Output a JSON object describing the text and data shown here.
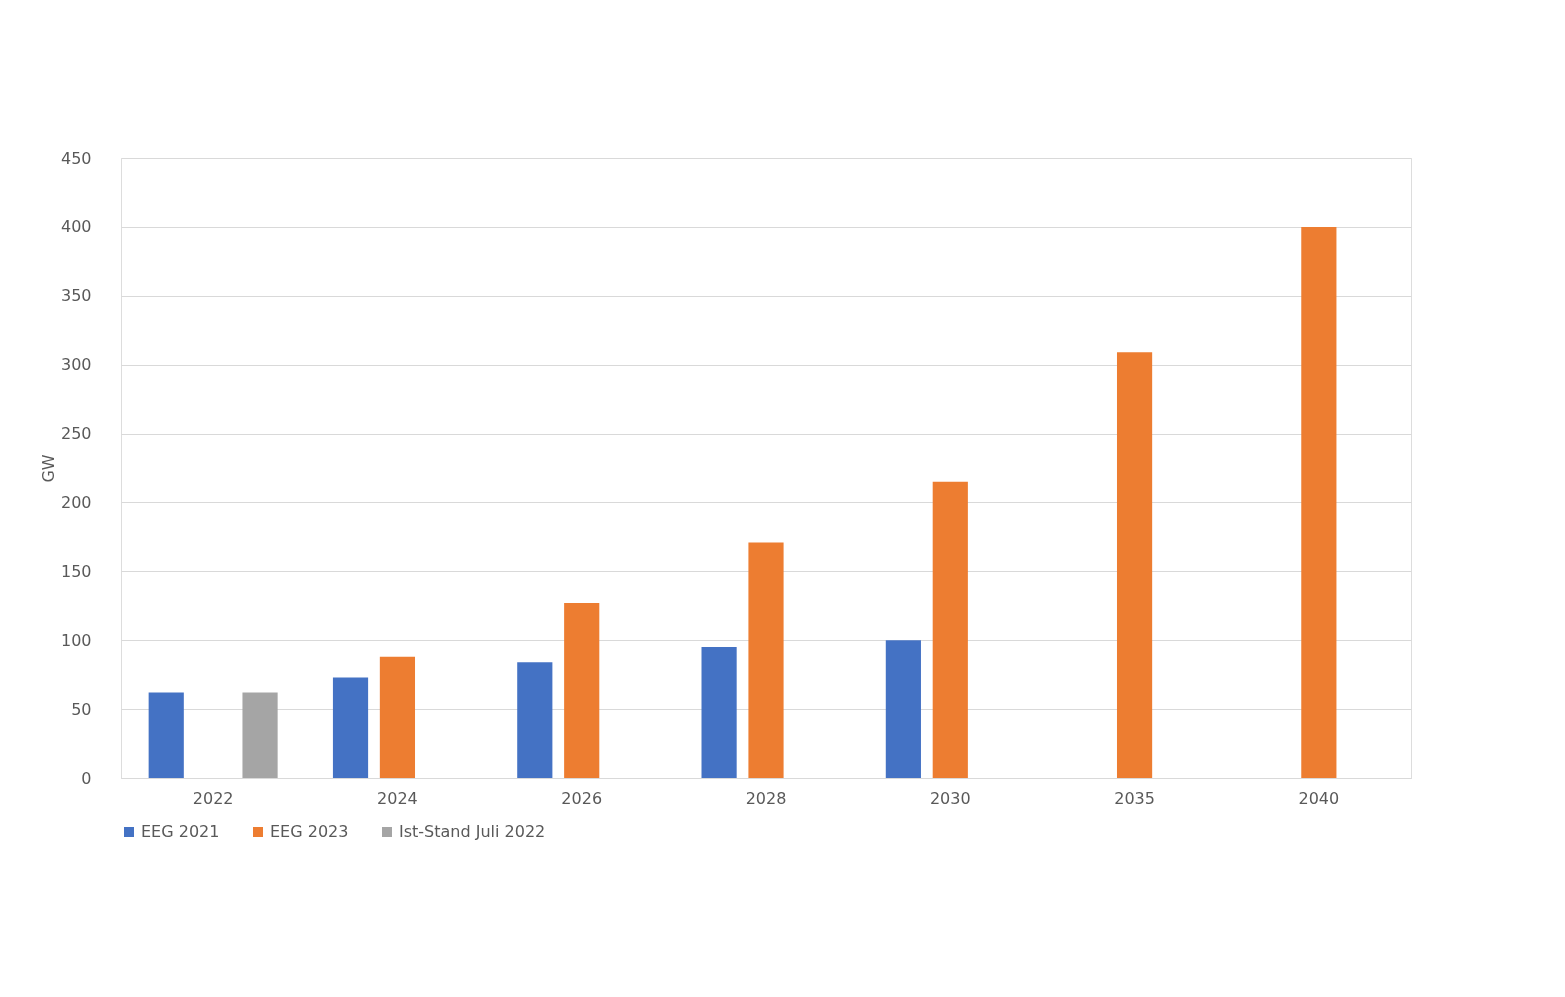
{
  "chart_data": {
    "type": "bar",
    "ylabel": "GW",
    "categories": [
      "2022",
      "2024",
      "2026",
      "2028",
      "2030",
      "2035",
      "2040"
    ],
    "series": [
      {
        "name": "EEG 2021",
        "color": "#4472c4",
        "values": [
          62,
          73,
          84,
          95,
          100,
          null,
          null
        ]
      },
      {
        "name": "EEG 2023",
        "color": "#ed7d31",
        "values": [
          null,
          88,
          127,
          171,
          215,
          309,
          400
        ]
      },
      {
        "name": "Ist-Stand Juli 2022",
        "color": "#a5a5a5",
        "values": [
          62,
          null,
          null,
          null,
          null,
          null,
          null
        ]
      }
    ],
    "ylim": [
      0,
      450
    ],
    "yticks": [
      0,
      50,
      100,
      150,
      200,
      250,
      300,
      350,
      400,
      450
    ],
    "grid": "y",
    "legend": "bottom"
  }
}
